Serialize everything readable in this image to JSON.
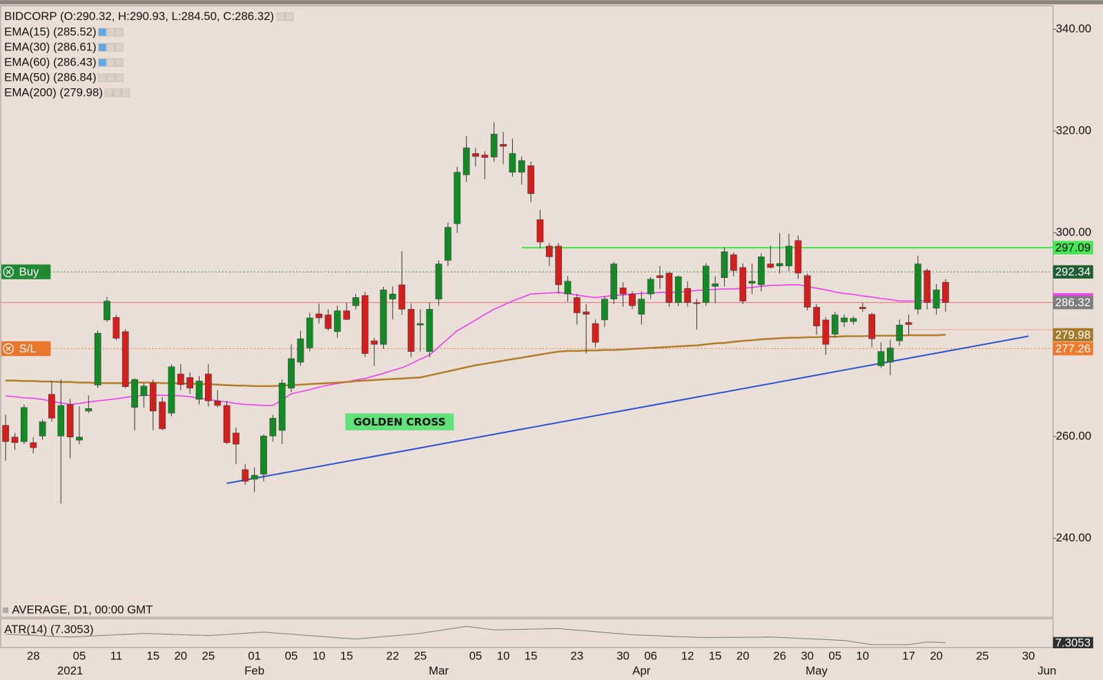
{
  "chart_data": {
    "type": "candlestick",
    "title": "BIDCORP (O:290.32, H:290.93, L:284.50, C:286.32)",
    "indicators": [
      "EMA(15) (285.52)",
      "EMA(30) (286.61)",
      "EMA(60) (286.43)",
      "EMA(50) (286.84)",
      "EMA(200) (279.98)"
    ],
    "footer": "AVERAGE, D1, 00:00 GMT",
    "annotation": "GOLDEN CROSS",
    "up_color": "#138a26",
    "down_color": "#d3201f",
    "ylim": [
      224.5,
      344.6
    ],
    "yticks": [
      {
        "value": 240,
        "label": "240.00"
      },
      {
        "value": 260,
        "label": "260.00"
      },
      {
        "value": 300,
        "label": "300.00"
      },
      {
        "value": 320,
        "label": "320.00"
      },
      {
        "value": 340,
        "label": "340.00"
      }
    ],
    "categories": [
      null,
      null,
      null,
      "28",
      null,
      null,
      null,
      null,
      "05",
      null,
      null,
      null,
      "11",
      null,
      null,
      null,
      "15",
      null,
      null,
      "20",
      null,
      null,
      "25",
      null,
      null,
      null,
      null,
      "01",
      null,
      null,
      null,
      "05",
      null,
      null,
      "10",
      null,
      null,
      "15",
      null,
      null,
      null,
      null,
      "22",
      null,
      null,
      "25",
      null,
      null,
      null,
      null,
      null,
      "05",
      null,
      null,
      "10",
      null,
      null,
      "15",
      null,
      null,
      null,
      null,
      "23",
      null,
      null,
      null,
      null,
      "30",
      null,
      null,
      "06",
      null,
      null,
      null,
      "12",
      null,
      null,
      "15",
      null,
      null,
      "20",
      null,
      null,
      null,
      "26",
      null,
      null,
      "30",
      null,
      null,
      "05",
      null,
      null,
      "10",
      null,
      null,
      null,
      null,
      "17",
      null,
      null,
      "20",
      null,
      null,
      null,
      null,
      "25",
      null,
      null,
      null,
      null,
      "30",
      null,
      null
    ],
    "months": [
      null,
      null,
      null,
      null,
      null,
      null,
      null,
      "2021",
      null,
      null,
      null,
      null,
      null,
      null,
      null,
      null,
      null,
      null,
      null,
      null,
      null,
      null,
      null,
      null,
      null,
      null,
      null,
      "Feb",
      null,
      null,
      null,
      null,
      null,
      null,
      null,
      null,
      null,
      null,
      null,
      null,
      null,
      null,
      null,
      null,
      null,
      null,
      null,
      "Mar",
      null,
      null,
      null,
      null,
      null,
      null,
      null,
      null,
      null,
      null,
      null,
      null,
      null,
      null,
      null,
      null,
      null,
      null,
      null,
      null,
      null,
      "Apr",
      null,
      null,
      null,
      null,
      null,
      null,
      null,
      null,
      null,
      null,
      null,
      null,
      null,
      null,
      null,
      null,
      null,
      null,
      "May",
      null,
      null,
      null,
      null,
      null,
      null,
      null,
      null,
      null,
      null,
      null,
      null,
      null,
      null,
      null,
      null,
      null,
      null,
      null,
      null,
      null,
      null,
      null,
      null,
      "Jun"
    ],
    "open": [
      262.2,
      259.9,
      259.0,
      258.8,
      260.1,
      268.3,
      260.1,
      266.3,
      259.3,
      265.0,
      270.1,
      282.9,
      283.4,
      280.6,
      265.7,
      268.0,
      270.5,
      266.8,
      264.6,
      272.3,
      271.6,
      267.3,
      272.3,
      267.0,
      266.1,
      260.7,
      253.5,
      251.6,
      252.6,
      260.1,
      261.2,
      269.5,
      274.6,
      277.4,
      284.1,
      283.9,
      280.6,
      284.7,
      285.7,
      287.7,
      278.8,
      278.1,
      287.0,
      289.8,
      285.0,
      281.9,
      276.7,
      287.0,
      294.6,
      301.8,
      311.4,
      315.6,
      315.3,
      314.9,
      317.4,
      311.9,
      311.9,
      313.2,
      302.6,
      297.4,
      297.4,
      288.0,
      287.3,
      284.5,
      282.2,
      282.9,
      287.0,
      289.2,
      288.0,
      284.0,
      288.0,
      291.6,
      292.1,
      286.3,
      289.1,
      286.3,
      286.3,
      289.5,
      291.2,
      295.7,
      293.2,
      290.1,
      289.8,
      293.9,
      293.5,
      293.5,
      298.5,
      291.6,
      285.4,
      282.9,
      280.1,
      282.5,
      282.6,
      285.4,
      284.0,
      273.9,
      274.6,
      278.8,
      282.4,
      285.0,
      292.6,
      285.2,
      290.32,
      null,
      null,
      null,
      null,
      null,
      null,
      null,
      null,
      null,
      null,
      null
    ],
    "high": [
      264.3,
      260.7,
      266.3,
      259.9,
      263.4,
      270.9,
      271.2,
      267.4,
      265.9,
      268.1,
      280.8,
      287.4,
      283.9,
      281.1,
      271.4,
      270.5,
      271.2,
      267.7,
      274.2,
      274.2,
      272.6,
      271.9,
      274.2,
      269.1,
      267.0,
      261.8,
      254.6,
      253.9,
      260.4,
      264.3,
      271.2,
      278.1,
      280.8,
      284.3,
      286.1,
      285.0,
      285.7,
      286.3,
      288.0,
      288.4,
      279.4,
      289.4,
      289.5,
      296.4,
      286.1,
      285.0,
      286.3,
      294.6,
      302.0,
      313.0,
      319.0,
      316.7,
      316.0,
      321.7,
      319.8,
      318.5,
      315.0,
      314.0,
      304.5,
      298.0,
      298.0,
      291.5,
      288.0,
      286.0,
      283.0,
      287.5,
      294.3,
      290.3,
      288.5,
      288.5,
      291.3,
      293.5,
      292.3,
      291.6,
      290.5,
      287.0,
      294.0,
      291.5,
      297.2,
      296.2,
      294.0,
      294.0,
      296.0,
      297.5,
      300.0,
      299.8,
      299.5,
      292.0,
      286.0,
      283.5,
      284.5,
      284.0,
      283.6,
      286.3,
      284.3,
      278.5,
      279.0,
      283.0,
      284.0,
      295.5,
      293.0,
      290.0,
      290.93,
      null,
      null,
      null,
      null,
      null,
      null,
      null,
      null,
      null,
      null,
      null
    ],
    "low": [
      255.3,
      257.4,
      258.5,
      256.7,
      259.4,
      262.9,
      246.8,
      255.7,
      258.5,
      264.6,
      269.5,
      282.5,
      278.9,
      269.5,
      261.2,
      265.7,
      261.2,
      261.2,
      264.0,
      269.1,
      268.4,
      266.3,
      265.9,
      265.7,
      258.5,
      254.6,
      250.5,
      249.1,
      251.2,
      259.0,
      258.5,
      268.7,
      273.9,
      276.7,
      282.2,
      280.8,
      279.4,
      282.9,
      285.0,
      275.6,
      273.9,
      277.2,
      283.0,
      283.9,
      275.6,
      276.7,
      275.6,
      285.7,
      293.5,
      300.0,
      310.0,
      313.0,
      310.5,
      314.0,
      313.5,
      311.0,
      309.5,
      306.0,
      297.0,
      293.5,
      288.0,
      286.5,
      282.0,
      276.3,
      277.5,
      281.5,
      286.0,
      285.5,
      285.0,
      282.0,
      287.0,
      289.0,
      285.5,
      285.6,
      285.5,
      281.0,
      285.7,
      286.2,
      289.5,
      291.5,
      286.0,
      288.0,
      288.5,
      293.0,
      292.0,
      292.5,
      291.0,
      284.8,
      280.0,
      276.0,
      279.5,
      281.5,
      282.0,
      284.5,
      277.5,
      273.5,
      272.0,
      277.8,
      280.0,
      284.0,
      285.0,
      284.0,
      284.5,
      null,
      null,
      null,
      null,
      null,
      null,
      null,
      null,
      null,
      null,
      null
    ],
    "close": [
      259.0,
      258.8,
      265.7,
      257.8,
      262.9,
      263.6,
      266.1,
      259.9,
      259.9,
      265.5,
      280.3,
      286.6,
      279.3,
      269.8,
      271.2,
      269.9,
      265.0,
      261.5,
      273.7,
      270.2,
      269.5,
      270.9,
      267.0,
      266.1,
      258.8,
      258.5,
      251.2,
      252.4,
      260.1,
      263.6,
      270.5,
      275.3,
      279.2,
      283.3,
      283.3,
      281.2,
      284.7,
      283.0,
      287.3,
      276.3,
      278.1,
      288.8,
      288.0,
      285.0,
      276.7,
      282.2,
      285.0,
      293.9,
      301.1,
      311.9,
      316.7,
      315.0,
      314.8,
      319.4,
      317.0,
      315.6,
      314.2,
      307.7,
      298.2,
      295.3,
      289.8,
      290.5,
      284.3,
      284.0,
      278.5,
      287.0,
      293.9,
      288.0,
      285.7,
      287.0,
      290.9,
      291.2,
      286.3,
      291.4,
      286.3,
      286.1,
      293.5,
      290.0,
      296.3,
      292.6,
      286.6,
      290.5,
      295.3,
      293.2,
      294.0,
      297.4,
      292.1,
      285.4,
      281.7,
      278.1,
      283.9,
      283.3,
      283.2,
      285.1,
      279.2,
      276.7,
      277.4,
      281.9,
      282.0,
      293.9,
      286.3,
      288.8,
      286.32,
      null,
      null,
      null,
      null,
      null,
      null,
      null,
      null,
      null,
      null,
      null
    ],
    "series": [
      {
        "name": "EMA(50)",
        "color": "#f03cf0",
        "values": [
          268.0,
          267.8,
          267.6,
          267.5,
          267.3,
          266.9,
          266.6,
          266.3,
          266.5,
          266.8,
          267.0,
          267.2,
          267.4,
          267.7,
          267.9,
          268.1,
          268.1,
          268.1,
          268.1,
          268.0,
          267.8,
          267.5,
          267.3,
          267.0,
          266.8,
          266.5,
          266.3,
          266.2,
          266.1,
          266.1,
          267.2,
          268.4,
          268.8,
          269.2,
          269.7,
          270.1,
          270.4,
          270.7,
          271.1,
          271.4,
          271.9,
          272.4,
          273.0,
          273.5,
          274.3,
          275.2,
          276.0,
          277.6,
          279.2,
          280.8,
          281.8,
          282.9,
          284.0,
          285.0,
          285.8,
          286.6,
          287.3,
          288.0,
          288.1,
          288.2,
          288.3,
          288.1,
          287.8,
          287.5,
          287.3,
          287.5,
          287.7,
          287.8,
          288.0,
          288.1,
          288.2,
          288.3,
          288.3,
          288.4,
          288.5,
          288.7,
          288.8,
          288.9,
          289.0,
          289.0,
          289.1,
          289.3,
          289.5,
          289.7,
          289.7,
          289.8,
          289.8,
          289.5,
          289.1,
          288.8,
          288.4,
          288.1,
          287.9,
          287.6,
          287.4,
          287.1,
          286.9,
          286.6,
          286.6,
          286.6,
          286.7,
          286.8,
          286.84,
          null,
          null,
          null,
          null,
          null,
          null,
          null,
          null,
          null,
          null,
          null
        ]
      },
      {
        "name": "EMA(200)",
        "color": "#b07d2b",
        "values": [
          271.0,
          271.0,
          270.9,
          270.9,
          270.8,
          270.8,
          270.7,
          270.7,
          270.6,
          270.6,
          270.5,
          270.5,
          270.5,
          270.5,
          270.6,
          270.6,
          270.6,
          270.5,
          270.5,
          270.4,
          270.4,
          270.3,
          270.3,
          270.2,
          270.1,
          270.0,
          270.0,
          269.9,
          269.9,
          269.9,
          270.0,
          270.1,
          270.2,
          270.3,
          270.4,
          270.5,
          270.6,
          270.7,
          270.9,
          271.0,
          271.1,
          271.2,
          271.3,
          271.4,
          271.5,
          271.6,
          272.0,
          272.4,
          272.8,
          273.2,
          273.6,
          274.0,
          274.3,
          274.6,
          274.9,
          275.2,
          275.5,
          275.8,
          276.1,
          276.4,
          276.7,
          276.8,
          276.8,
          276.9,
          276.9,
          277.0,
          277.0,
          277.1,
          277.2,
          277.3,
          277.4,
          277.5,
          277.6,
          277.7,
          277.8,
          277.9,
          278.1,
          278.3,
          278.4,
          278.6,
          278.8,
          278.9,
          279.1,
          279.2,
          279.3,
          279.4,
          279.4,
          279.5,
          279.5,
          279.6,
          279.6,
          279.7,
          279.7,
          279.7,
          279.8,
          279.8,
          279.8,
          279.8,
          279.9,
          279.9,
          279.9,
          279.9,
          279.98,
          null,
          null,
          null,
          null,
          null,
          null,
          null,
          null,
          null,
          null,
          null
        ]
      }
    ],
    "levels": [
      {
        "value": 297.09,
        "color": "#3fe34f",
        "style": "solid",
        "start": 56
      },
      {
        "name": "Buy",
        "value": 292.34,
        "color": "#1f8a33",
        "style": "dotted"
      },
      {
        "value": 286.32,
        "color": "#e07070",
        "style": "solid"
      },
      {
        "value": 280.97,
        "color": "#f2a48f",
        "style": "solid",
        "start": 98
      },
      {
        "name": "S/L",
        "value": 277.26,
        "color": "#e8762c",
        "style": "dotted"
      }
    ],
    "trendline": {
      "color": "#2b50d2",
      "start": 24,
      "start_value": 250.8,
      "end": 111,
      "end_value": 279.7
    },
    "price_tags": [
      {
        "value": 297.09,
        "bg": "#43e653",
        "fg": "#000000"
      },
      {
        "value": 292.34,
        "bg": "#1f5f33",
        "fg": "#ffffff"
      },
      {
        "value": 286.84,
        "bg": "#f23ff2",
        "fg": "#ffffff"
      },
      {
        "value": 286.32,
        "bg": "#7d7d7d",
        "fg": "#ffffff"
      },
      {
        "value": 279.98,
        "bg": "#a77a2b",
        "fg": "#ffffff"
      },
      {
        "value": 277.26,
        "bg": "#f07a2a",
        "fg": "#ffffff"
      }
    ],
    "atr": {
      "label": "ATR(14) (7.3053)",
      "color": "#7a7a7a",
      "ylim": [
        6.7,
        10.2
      ],
      "current": 7.3053,
      "values": [
        8.36,
        8.31,
        8.26,
        8.21,
        8.15,
        8.1,
        8.05,
        8.0,
        8.06,
        8.11,
        8.17,
        8.22,
        8.28,
        8.34,
        8.39,
        8.45,
        8.41,
        8.37,
        8.34,
        8.3,
        8.26,
        8.22,
        8.19,
        8.26,
        8.33,
        8.4,
        8.48,
        8.55,
        8.62,
        8.53,
        8.44,
        8.36,
        8.27,
        8.18,
        8.1,
        8.01,
        7.92,
        7.84,
        7.75,
        7.85,
        7.95,
        8.05,
        8.15,
        8.25,
        8.35,
        8.45,
        8.63,
        8.8,
        8.98,
        9.15,
        9.33,
        9.18,
        9.04,
        8.89,
        8.91,
        8.94,
        8.96,
        8.99,
        9.01,
        9.04,
        9.06,
        8.96,
        8.86,
        8.77,
        8.67,
        8.57,
        8.47,
        8.38,
        8.28,
        8.24,
        8.19,
        8.15,
        8.1,
        8.06,
        8.02,
        7.97,
        7.93,
        7.94,
        7.95,
        7.96,
        7.97,
        7.98,
        7.99,
        8.0,
        7.95,
        7.9,
        7.84,
        7.79,
        7.74,
        7.69,
        7.63,
        7.58,
        7.4,
        7.23,
        7.05,
        7.05,
        7.05,
        7.05,
        7.05,
        7.22,
        7.4,
        7.35,
        7.3053,
        null,
        null,
        null,
        null,
        null,
        null,
        null,
        null,
        null,
        null,
        null
      ]
    }
  }
}
